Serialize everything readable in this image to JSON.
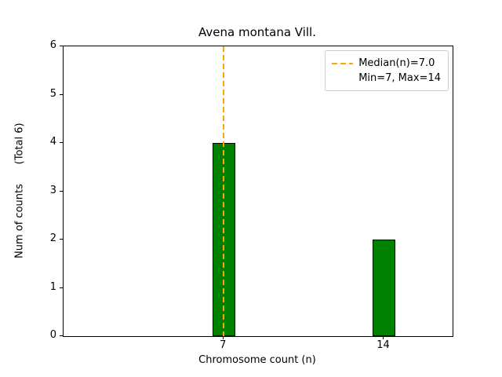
{
  "chart_data": {
    "type": "bar",
    "title": "Avena montana Vill.",
    "xlabel": "Chromosome count (n)",
    "ylabel": "Num of counts      (Total 6)",
    "categories": [
      7,
      14
    ],
    "values": [
      4,
      2
    ],
    "total_counts": 6,
    "bar_color": "#008000",
    "bar_edge_color": "#000000",
    "bar_width": 1,
    "xlim": [
      0,
      17
    ],
    "ylim": [
      0,
      6
    ],
    "xticks": [
      7,
      14
    ],
    "yticks": [
      0,
      1,
      2,
      3,
      4,
      5,
      6
    ],
    "grid": false,
    "median_line": {
      "x": 7,
      "color": "#FFA500",
      "style": "dashed"
    },
    "legend": {
      "position": "upper right",
      "entries": [
        {
          "label": "Median(n)=7.0",
          "sample": "dashed-line",
          "color": "#FFA500"
        },
        {
          "label": "Min=7, Max=14",
          "sample": "none"
        }
      ]
    }
  }
}
